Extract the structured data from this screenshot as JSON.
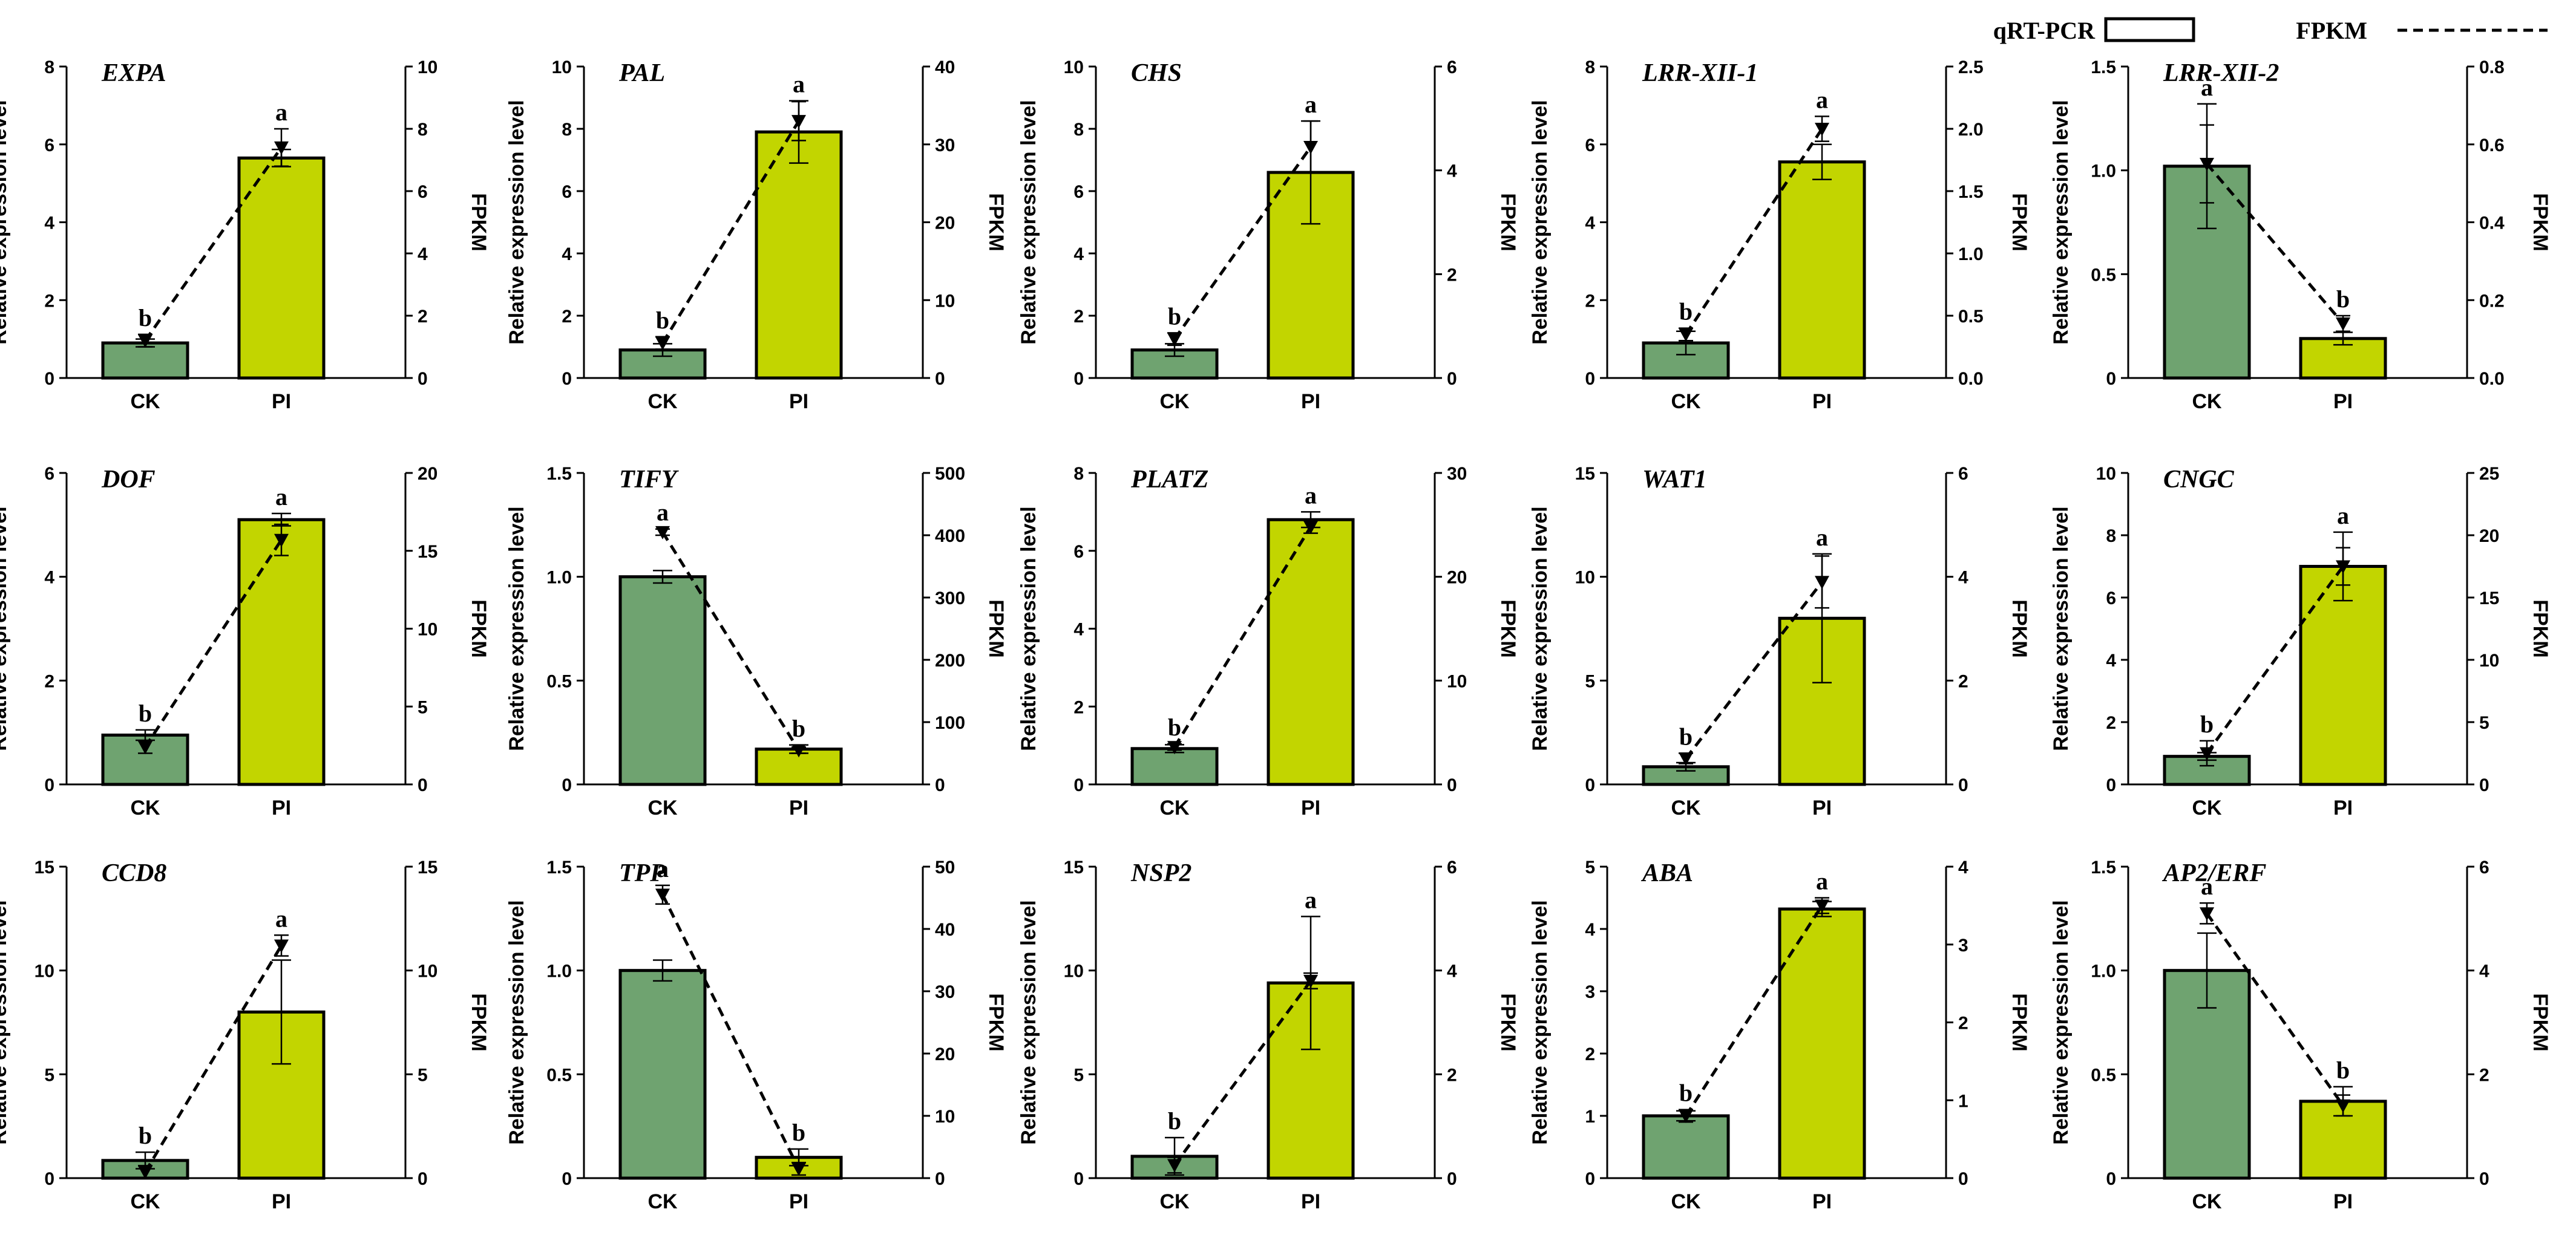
{
  "legend": {
    "qrt_label": "qRT-PCR",
    "fpkm_label": "FPKM"
  },
  "colors": {
    "ck_bar": "#6fa370",
    "pi_bar": "#c2d500",
    "edge": "#000000"
  },
  "axis_text": {
    "left_ylabel": "Relative expression level",
    "right_ylabel": "FPKM"
  },
  "chart_data": [
    {
      "type": "bar",
      "title": "EXPA",
      "categories": [
        "CK",
        "PI"
      ],
      "values": [
        0.9,
        5.65
      ],
      "errors": [
        0.1,
        0.22
      ],
      "sig": [
        "b",
        "a"
      ],
      "ylim": [
        0,
        8
      ],
      "yticks": [
        "0",
        "2",
        "4",
        "6",
        "8"
      ],
      "fpkm_values": [
        1.2,
        7.4
      ],
      "fpkm_errors": [
        0.2,
        0.6
      ],
      "y2lim": [
        0,
        10
      ],
      "y2ticks": [
        "0",
        "2",
        "4",
        "6",
        "8",
        "10"
      ],
      "xlabel": "",
      "ylabel": "Relative expression level",
      "y2label": "FPKM"
    },
    {
      "type": "bar",
      "title": "PAL",
      "categories": [
        "CK",
        "PI"
      ],
      "values": [
        0.9,
        7.9
      ],
      "errors": [
        0.2,
        1.0
      ],
      "sig": [
        "b",
        "a"
      ],
      "ylim": [
        0,
        10
      ],
      "yticks": [
        "0",
        "2",
        "4",
        "6",
        "8",
        "10"
      ],
      "fpkm_values": [
        4.5,
        33.0
      ],
      "fpkm_errors": [
        0.8,
        2.5
      ],
      "y2lim": [
        0,
        40
      ],
      "y2ticks": [
        "0",
        "10",
        "20",
        "30",
        "40"
      ],
      "xlabel": "",
      "ylabel": "Relative expression level",
      "y2label": "FPKM"
    },
    {
      "type": "bar",
      "title": "CHS",
      "categories": [
        "CK",
        "PI"
      ],
      "values": [
        0.9,
        6.6
      ],
      "errors": [
        0.2,
        1.65
      ],
      "sig": [
        "b",
        "a"
      ],
      "ylim": [
        0,
        10
      ],
      "yticks": [
        "0",
        "2",
        "4",
        "6",
        "8",
        "10"
      ],
      "fpkm_values": [
        0.75,
        4.45
      ],
      "fpkm_errors": [
        0.12,
        0.5
      ],
      "y2lim": [
        0,
        6
      ],
      "y2ticks": [
        "0",
        "2",
        "4",
        "6"
      ],
      "xlabel": "",
      "ylabel": "Relative expression level",
      "y2label": "FPKM"
    },
    {
      "type": "bar",
      "title": "LRR-XII-1",
      "categories": [
        "CK",
        "PI"
      ],
      "values": [
        0.9,
        5.55
      ],
      "errors": [
        0.3,
        0.45
      ],
      "sig": [
        "b",
        "a"
      ],
      "ylim": [
        0,
        8
      ],
      "yticks": [
        "0",
        "2",
        "4",
        "6",
        "8"
      ],
      "fpkm_values": [
        0.35,
        2.0
      ],
      "fpkm_errors": [
        0.05,
        0.1
      ],
      "y2lim": [
        0,
        2.5
      ],
      "y2ticks": [
        "0.0",
        "0.5",
        "1.0",
        "1.5",
        "2.0",
        "2.5"
      ],
      "xlabel": "",
      "ylabel": "Relative expression level",
      "y2label": "FPKM"
    },
    {
      "type": "bar",
      "title": "LRR-XII-2",
      "categories": [
        "CK",
        "PI"
      ],
      "values": [
        1.02,
        0.19
      ],
      "errors": [
        0.3,
        0.03
      ],
      "sig": [
        "a",
        "b"
      ],
      "ylim": [
        0,
        1.5
      ],
      "yticks": [
        "0",
        "0.5",
        "1.0",
        "1.5"
      ],
      "fpkm_values": [
        0.55,
        0.14
      ],
      "fpkm_errors": [
        0.1,
        0.02
      ],
      "y2lim": [
        0,
        0.8
      ],
      "y2ticks": [
        "0.0",
        "0.2",
        "0.4",
        "0.6",
        "0.8"
      ],
      "xlabel": "",
      "ylabel": "Relative expression level",
      "y2label": "FPKM"
    },
    {
      "type": "bar",
      "title": "DOF",
      "categories": [
        "CK",
        "PI"
      ],
      "values": [
        0.95,
        5.1
      ],
      "errors": [
        0.1,
        0.12
      ],
      "sig": [
        "b",
        "a"
      ],
      "ylim": [
        0,
        6
      ],
      "yticks": [
        "0",
        "2",
        "4",
        "6"
      ],
      "fpkm_values": [
        2.4,
        15.7
      ],
      "fpkm_errors": [
        0.4,
        1.0
      ],
      "y2lim": [
        0,
        20
      ],
      "y2ticks": [
        "0",
        "5",
        "10",
        "15",
        "20"
      ],
      "xlabel": "",
      "ylabel": "Relative expression level",
      "y2label": "FPKM"
    },
    {
      "type": "bar",
      "title": "TIFY",
      "categories": [
        "CK",
        "PI"
      ],
      "values": [
        1.0,
        0.17
      ],
      "errors": [
        0.03,
        0.02
      ],
      "sig": [
        "a",
        "b"
      ],
      "ylim": [
        0,
        1.5
      ],
      "yticks": [
        "0",
        "0.5",
        "1.0",
        "1.5"
      ],
      "fpkm_values": [
        405,
        55
      ],
      "fpkm_errors": [
        5,
        5
      ],
      "y2lim": [
        0,
        500
      ],
      "y2ticks": [
        "0",
        "100",
        "200",
        "300",
        "400",
        "500"
      ],
      "xlabel": "",
      "ylabel": "Relative expression level",
      "y2label": "FPKM"
    },
    {
      "type": "bar",
      "title": "PLATZ",
      "categories": [
        "CK",
        "PI"
      ],
      "values": [
        0.92,
        6.8
      ],
      "errors": [
        0.1,
        0.2
      ],
      "sig": [
        "b",
        "a"
      ],
      "ylim": [
        0,
        8
      ],
      "yticks": [
        "0",
        "2",
        "4",
        "6",
        "8"
      ],
      "fpkm_values": [
        3.6,
        24.8
      ],
      "fpkm_errors": [
        0.3,
        0.6
      ],
      "y2lim": [
        0,
        30
      ],
      "y2ticks": [
        "0",
        "10",
        "20",
        "30"
      ],
      "xlabel": "",
      "ylabel": "Relative expression level",
      "y2label": "FPKM"
    },
    {
      "type": "bar",
      "title": "WAT1",
      "categories": [
        "CK",
        "PI"
      ],
      "values": [
        0.85,
        8.0
      ],
      "errors": [
        0.2,
        3.1
      ],
      "sig": [
        "b",
        "a"
      ],
      "ylim": [
        0,
        15
      ],
      "yticks": [
        "0",
        "5",
        "10",
        "15"
      ],
      "fpkm_values": [
        0.5,
        3.9
      ],
      "fpkm_errors": [
        0.1,
        0.5
      ],
      "y2lim": [
        0,
        6
      ],
      "y2ticks": [
        "0",
        "2",
        "4",
        "6"
      ],
      "xlabel": "",
      "ylabel": "Relative expression level",
      "y2label": "FPKM"
    },
    {
      "type": "bar",
      "title": "CNGC",
      "categories": [
        "CK",
        "PI"
      ],
      "values": [
        0.9,
        7.0
      ],
      "errors": [
        0.12,
        1.1
      ],
      "sig": [
        "b",
        "a"
      ],
      "ylim": [
        0,
        10
      ],
      "yticks": [
        "0",
        "2",
        "4",
        "6",
        "8",
        "10"
      ],
      "fpkm_values": [
        2.5,
        17.5
      ],
      "fpkm_errors": [
        1.0,
        1.5
      ],
      "y2lim": [
        0,
        25
      ],
      "y2ticks": [
        "0",
        "5",
        "10",
        "15",
        "20",
        "25"
      ],
      "xlabel": "",
      "ylabel": "Relative expression level",
      "y2label": "FPKM"
    },
    {
      "type": "bar",
      "title": "CCD8",
      "categories": [
        "CK",
        "PI"
      ],
      "values": [
        0.85,
        8.0
      ],
      "errors": [
        0.4,
        2.5
      ],
      "sig": [
        "b",
        "a"
      ],
      "ylim": [
        0,
        15
      ],
      "yticks": [
        "0",
        "5",
        "10",
        "15"
      ],
      "fpkm_values": [
        0.3,
        11.2
      ],
      "fpkm_errors": [
        0.3,
        0.5
      ],
      "y2lim": [
        0,
        15
      ],
      "y2ticks": [
        "0",
        "5",
        "10",
        "15"
      ],
      "xlabel": "",
      "ylabel": "Relative expression level",
      "y2label": "FPKM"
    },
    {
      "type": "bar",
      "title": "TPP",
      "categories": [
        "CK",
        "PI"
      ],
      "values": [
        1.0,
        0.1
      ],
      "errors": [
        0.05,
        0.04
      ],
      "sig": [
        "a",
        "b"
      ],
      "ylim": [
        0,
        1.5
      ],
      "yticks": [
        "0",
        "0.5",
        "1.0",
        "1.5"
      ],
      "fpkm_values": [
        45.5,
        1.5
      ],
      "fpkm_errors": [
        1.5,
        1.0
      ],
      "y2lim": [
        0,
        50
      ],
      "y2ticks": [
        "0",
        "10",
        "20",
        "30",
        "40",
        "50"
      ],
      "xlabel": "",
      "ylabel": "Relative expression level",
      "y2label": "FPKM"
    },
    {
      "type": "bar",
      "title": "NSP2",
      "categories": [
        "CK",
        "PI"
      ],
      "values": [
        1.05,
        9.4
      ],
      "errors": [
        0.9,
        3.2
      ],
      "sig": [
        "b",
        "a"
      ],
      "ylim": [
        0,
        15
      ],
      "yticks": [
        "0",
        "5",
        "10",
        "15"
      ],
      "fpkm_values": [
        0.25,
        3.8
      ],
      "fpkm_errors": [
        0.15,
        0.15
      ],
      "y2lim": [
        0,
        6
      ],
      "y2ticks": [
        "0",
        "2",
        "4",
        "6"
      ],
      "xlabel": "",
      "ylabel": "Relative expression level",
      "y2label": "FPKM"
    },
    {
      "type": "bar",
      "title": "ABA",
      "categories": [
        "CK",
        "PI"
      ],
      "values": [
        1.0,
        4.32
      ],
      "errors": [
        0.08,
        0.12
      ],
      "sig": [
        "b",
        "a"
      ],
      "ylim": [
        0,
        5
      ],
      "yticks": [
        "0",
        "1",
        "2",
        "3",
        "4",
        "5"
      ],
      "fpkm_values": [
        0.8,
        3.5
      ],
      "fpkm_errors": [
        0.08,
        0.1
      ],
      "y2lim": [
        0,
        4
      ],
      "y2ticks": [
        "0",
        "1",
        "2",
        "3",
        "4"
      ],
      "xlabel": "",
      "ylabel": "Relative expression level",
      "y2label": "FPKM"
    },
    {
      "type": "bar",
      "title": "AP2/ERF",
      "categories": [
        "CK",
        "PI"
      ],
      "values": [
        1.0,
        0.37
      ],
      "errors": [
        0.18,
        0.07
      ],
      "sig": [
        "a",
        "b"
      ],
      "ylim": [
        0,
        1.5
      ],
      "yticks": [
        "0",
        "0.5",
        "1.0",
        "1.5"
      ],
      "fpkm_values": [
        5.1,
        1.4
      ],
      "fpkm_errors": [
        0.2,
        0.2
      ],
      "y2lim": [
        0,
        6
      ],
      "y2ticks": [
        "0",
        "2",
        "4",
        "6"
      ],
      "xlabel": "",
      "ylabel": "Relative expression level",
      "y2label": "FPKM"
    }
  ]
}
